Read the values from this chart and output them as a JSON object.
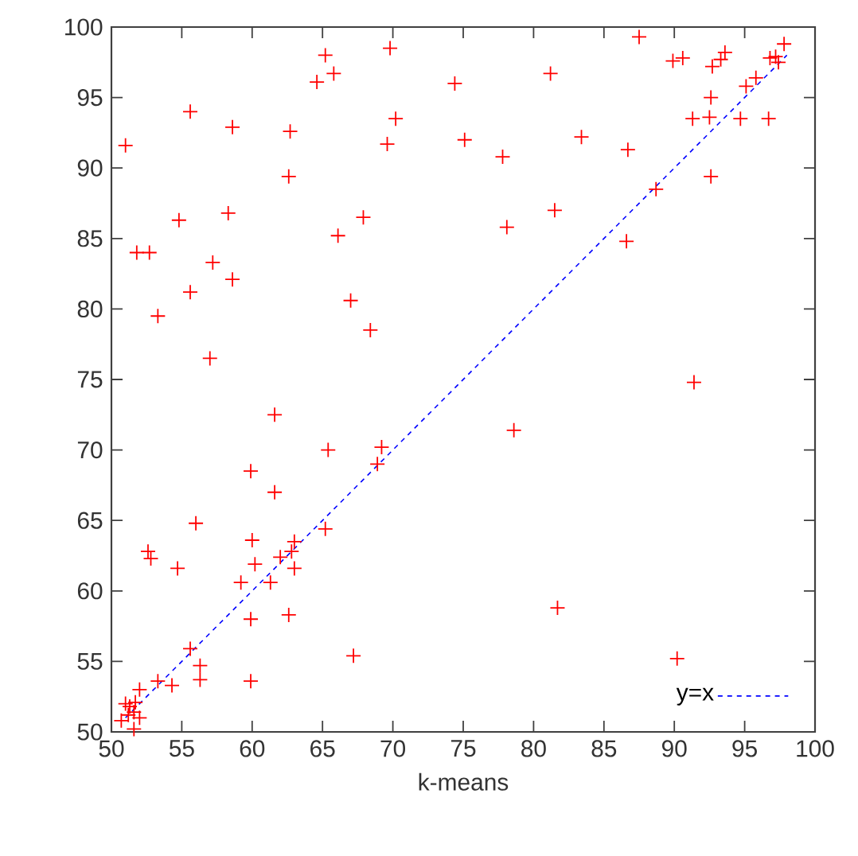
{
  "chart_data": {
    "type": "scatter",
    "xlabel": "k-means",
    "xlim": [
      50,
      100
    ],
    "ylim": [
      50,
      100
    ],
    "xticks": [
      50,
      55,
      60,
      65,
      70,
      75,
      80,
      85,
      90,
      95,
      100
    ],
    "yticks": [
      50,
      55,
      60,
      65,
      70,
      75,
      80,
      85,
      90,
      95,
      100
    ],
    "grid": false,
    "legend": "bottom right",
    "series": [
      {
        "color": "#ff0000",
        "marker": "cross",
        "x": [
          51.0,
          51.8,
          52.7,
          53.3,
          54.8,
          55.6,
          55.6,
          57.0,
          57.2,
          58.3,
          58.6,
          58.6,
          62.6,
          62.7,
          64.6,
          65.2,
          65.8,
          66.1,
          67.0,
          67.9,
          68.4,
          69.6,
          69.8,
          70.2,
          74.4,
          75.1,
          77.8,
          78.1,
          81.2,
          81.5,
          83.4,
          86.7,
          86.6,
          87.5,
          88.7,
          89.9,
          90.6,
          91.3,
          92.5,
          92.6,
          92.6,
          92.7,
          93.3,
          93.6,
          94.7,
          95.1,
          95.8,
          96.7,
          96.8,
          97.4,
          97.8,
          97.2,
          78.6,
          81.7,
          90.2,
          91.4,
          61.6,
          59.9,
          61.6,
          65.4,
          69.2,
          68.9,
          60.0,
          60.2,
          62.0,
          62.8,
          63.0,
          63.0,
          62.6,
          61.3,
          59.2,
          65.2,
          67.2,
          59.9,
          59.9,
          52.6,
          52.8,
          54.7,
          56.0,
          55.6,
          56.3,
          56.3,
          54.3,
          53.3,
          52.0,
          51.7,
          51.3,
          51.2,
          51.0,
          51.6,
          51.6,
          50.7,
          52.0
        ],
        "values": [
          91.6,
          84.0,
          84.0,
          79.5,
          86.3,
          94.0,
          81.2,
          76.5,
          83.3,
          86.8,
          82.1,
          92.9,
          89.4,
          92.6,
          96.1,
          98.0,
          96.7,
          85.2,
          80.6,
          86.5,
          78.5,
          91.7,
          98.5,
          93.5,
          96.0,
          92.0,
          90.8,
          85.8,
          96.7,
          87.0,
          92.2,
          91.3,
          84.8,
          99.3,
          88.5,
          97.6,
          97.8,
          93.5,
          93.6,
          95.0,
          89.4,
          97.2,
          97.7,
          98.2,
          93.5,
          95.8,
          96.4,
          93.5,
          97.8,
          97.5,
          98.8,
          97.9,
          71.4,
          58.8,
          55.2,
          74.8,
          72.5,
          68.5,
          67.0,
          70.0,
          70.2,
          69.0,
          63.6,
          61.9,
          62.4,
          62.8,
          63.5,
          61.6,
          58.3,
          60.6,
          60.6,
          64.4,
          55.4,
          58.0,
          53.6,
          62.8,
          62.3,
          61.6,
          64.8,
          55.9,
          54.7,
          53.7,
          53.3,
          53.6,
          53.0,
          52.1,
          51.8,
          51.2,
          52.0,
          51.4,
          50.2,
          50.8,
          51.0
        ]
      },
      {
        "type": "line",
        "name": "y=x",
        "color": "#0000ff",
        "marker": "none",
        "line_style": "dashed",
        "x": [
          51,
          98
        ],
        "values": [
          51,
          98
        ]
      }
    ]
  }
}
